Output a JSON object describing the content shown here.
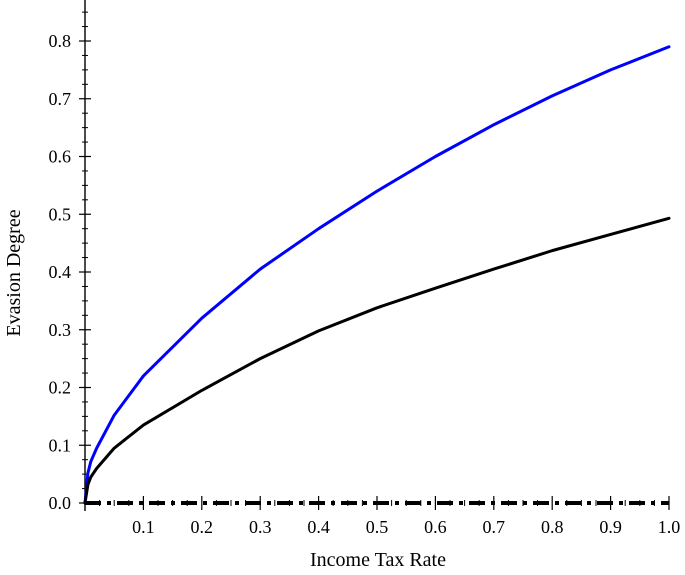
{
  "chart_data": {
    "type": "line",
    "title": "",
    "xlabel": "Income Tax Rate",
    "ylabel": "Evasion Degree",
    "xlim": [
      0,
      1.0
    ],
    "ylim": [
      0,
      0.8
    ],
    "x_ticks": [
      "0.1",
      "0.2",
      "0.3",
      "0.4",
      "0.5",
      "0.6",
      "0.7",
      "0.8",
      "0.9",
      "1.0"
    ],
    "y_ticks": [
      "0.0",
      "0.1",
      "0.2",
      "0.3",
      "0.4",
      "0.5",
      "0.6",
      "0.7",
      "0.8"
    ],
    "grid": false,
    "legend": "none",
    "series": [
      {
        "color": "#0000ff",
        "x": [
          0.0,
          0.005,
          0.01,
          0.02,
          0.05,
          0.1,
          0.2,
          0.3,
          0.4,
          0.5,
          0.6,
          0.7,
          0.8,
          0.9,
          1.0
        ],
        "y": [
          0.0,
          0.052,
          0.072,
          0.095,
          0.152,
          0.22,
          0.32,
          0.405,
          0.475,
          0.54,
          0.6,
          0.655,
          0.705,
          0.75,
          0.79
        ]
      },
      {
        "color": "#000000",
        "x": [
          0.0,
          0.005,
          0.01,
          0.02,
          0.05,
          0.1,
          0.2,
          0.3,
          0.4,
          0.5,
          0.6,
          0.7,
          0.8,
          0.9,
          1.0
        ],
        "y": [
          0.0,
          0.032,
          0.045,
          0.06,
          0.095,
          0.135,
          0.195,
          0.25,
          0.298,
          0.338,
          0.372,
          0.405,
          0.437,
          0.465,
          0.493
        ]
      },
      {
        "color": "#000000",
        "style": "dashed",
        "x": [
          0.0,
          1.0
        ],
        "y": [
          0.0,
          0.0
        ]
      }
    ]
  }
}
